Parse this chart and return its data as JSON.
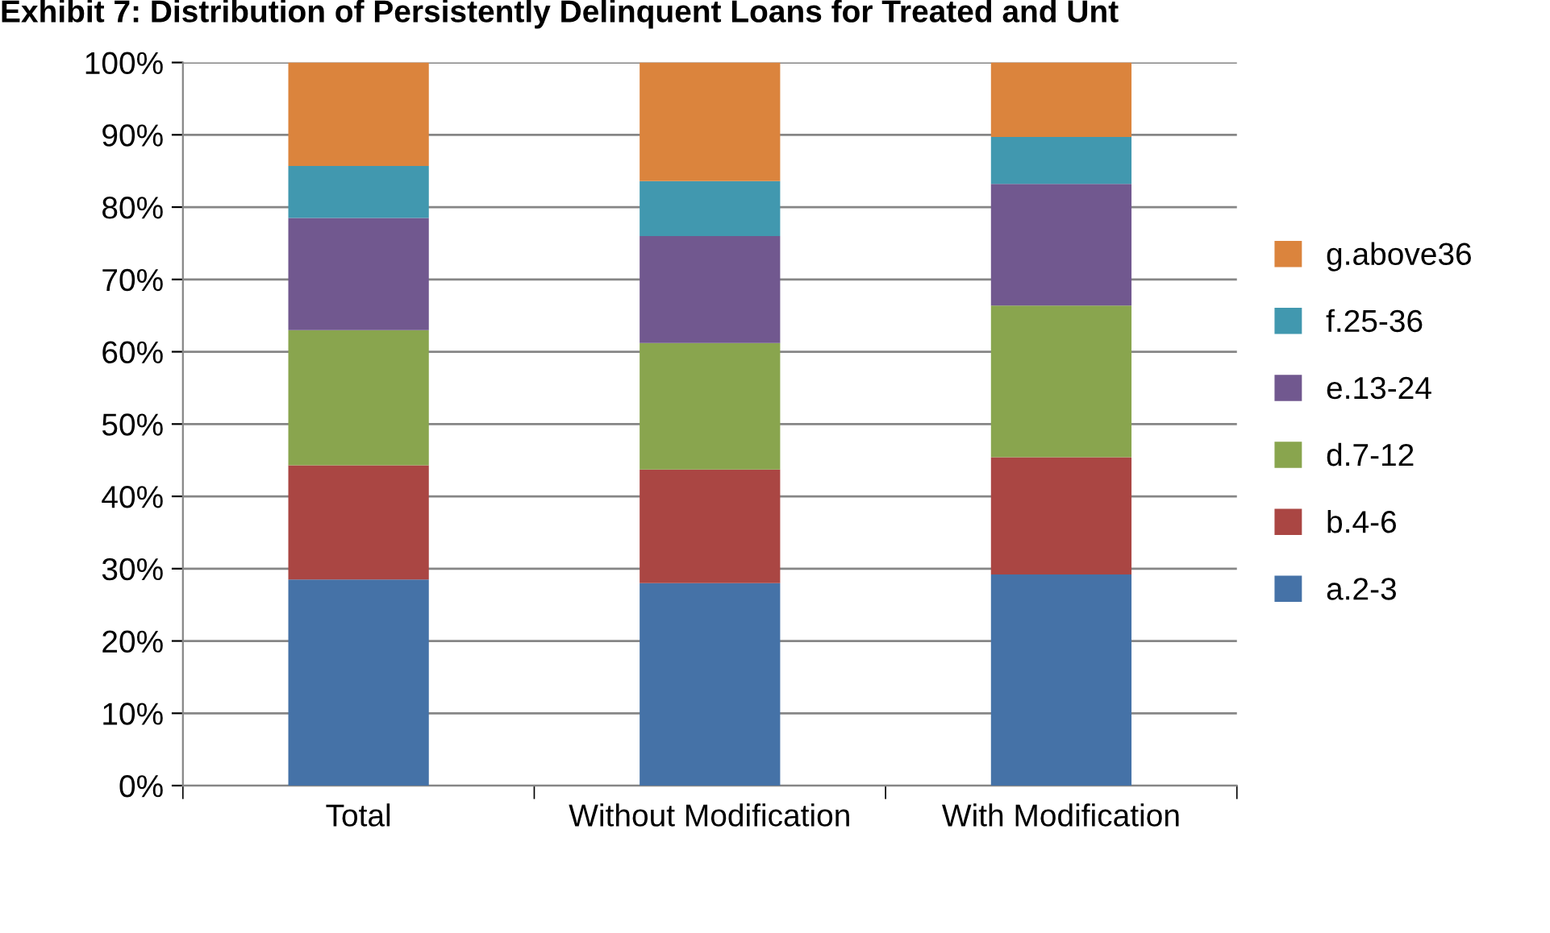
{
  "chart_data": {
    "type": "bar",
    "stacked": true,
    "title": "Exhibit 7: Distribution of Persistently Delinquent Loans for Treated and Unt",
    "categories": [
      "Total",
      "Without Modification",
      "With Modification"
    ],
    "series": [
      {
        "name": "a.2-3",
        "color": "#4572a7",
        "values": [
          28.5,
          28.0,
          29.2
        ]
      },
      {
        "name": "b.4-6",
        "color": "#aa4643",
        "values": [
          15.8,
          15.7,
          16.2
        ]
      },
      {
        "name": "d.7-12",
        "color": "#89a54e",
        "values": [
          18.7,
          17.5,
          21.0
        ]
      },
      {
        "name": "e.13-24",
        "color": "#71588f",
        "values": [
          15.5,
          14.8,
          16.8
        ]
      },
      {
        "name": "f.25-36",
        "color": "#4198af",
        "values": [
          7.2,
          7.6,
          6.5
        ]
      },
      {
        "name": "g.above36",
        "color": "#db843d",
        "values": [
          14.3,
          16.4,
          10.3
        ]
      }
    ],
    "ylim": [
      0,
      100
    ],
    "yticks": [
      {
        "value": 0,
        "label": "0%"
      },
      {
        "value": 10,
        "label": "10%"
      },
      {
        "value": 20,
        "label": "20%"
      },
      {
        "value": 30,
        "label": "30%"
      },
      {
        "value": 40,
        "label": "40%"
      },
      {
        "value": 50,
        "label": "50%"
      },
      {
        "value": 60,
        "label": "60%"
      },
      {
        "value": 70,
        "label": "70%"
      },
      {
        "value": 80,
        "label": "80%"
      },
      {
        "value": 90,
        "label": "90%"
      },
      {
        "value": 100,
        "label": "100%"
      }
    ],
    "grid": "y",
    "legend": "right"
  }
}
